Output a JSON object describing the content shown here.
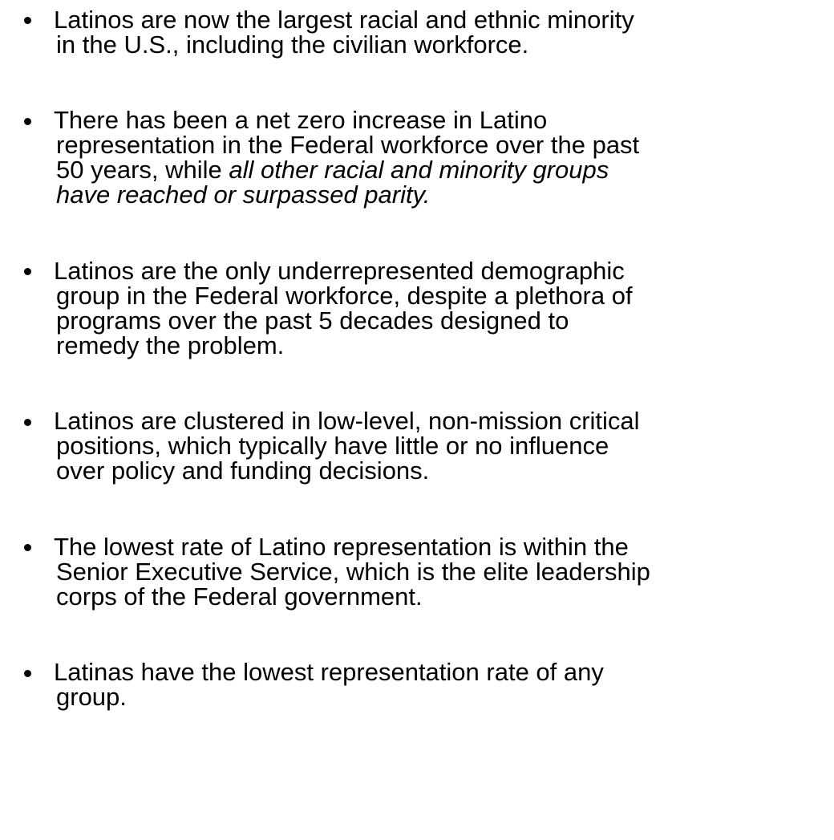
{
  "bullets": [
    {
      "lines": [
        [
          "Latinos are now the largest racial and ethnic minority"
        ],
        [
          "in the U.S., including the civilian workforce."
        ]
      ]
    },
    {
      "lines": [
        [
          "There has been a net zero increase in Latino"
        ],
        [
          "representation in the Federal workforce over the past"
        ],
        [
          "50 years, while ",
          {
            "text": "all other racial and minority groups",
            "italic": true
          }
        ],
        [
          {
            "text": "have reached or surpassed parity.",
            "italic": true
          }
        ]
      ]
    },
    {
      "lines": [
        [
          "Latinos are the only underrepresented demographic"
        ],
        [
          "group in the Federal workforce, despite a plethora of"
        ],
        [
          "programs over the past 5 decades designed to"
        ],
        [
          "remedy the problem."
        ]
      ]
    },
    {
      "lines": [
        [
          "Latinos are clustered in low-level, non-mission critical"
        ],
        [
          "positions, which typically have little or no influence"
        ],
        [
          "over policy and funding decisions."
        ]
      ]
    },
    {
      "lines": [
        [
          "The lowest rate of Latino representation is within the"
        ],
        [
          "Senior Executive Service, which is the elite leadership"
        ],
        [
          "corps of the Federal government."
        ]
      ]
    },
    {
      "lines": [
        [
          "Latinas have the lowest representation rate of any"
        ],
        [
          "group."
        ]
      ]
    }
  ]
}
